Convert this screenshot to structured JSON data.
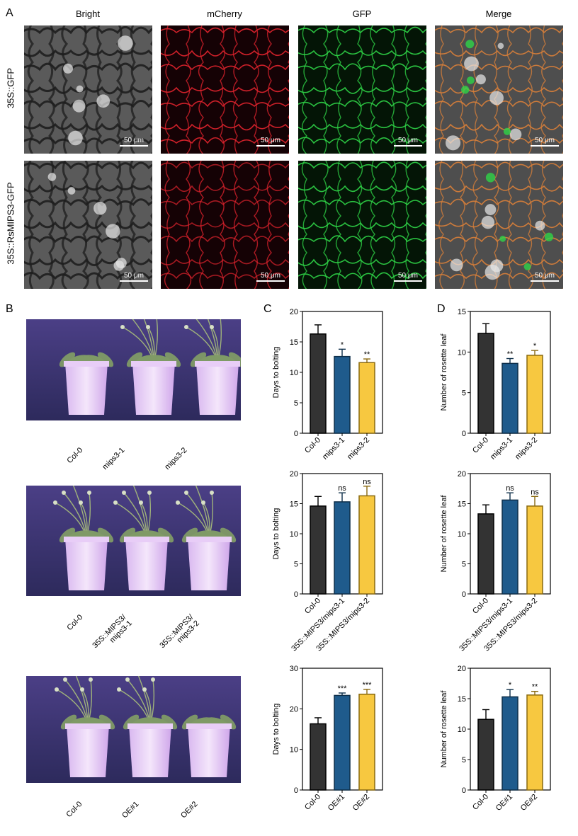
{
  "panelA": {
    "letter": "A",
    "columns": [
      "Bright",
      "mCherry",
      "GFP",
      "Merge"
    ],
    "rows": [
      "35S::GFP",
      "35S::RsMIPS3-GFP"
    ],
    "scale_bar": "50 μm"
  },
  "panelB": {
    "letter": "B",
    "photos": [
      {
        "labels": [
          "Col-0",
          "mips3-1",
          "mips3-2"
        ]
      },
      {
        "labels": [
          "Col-0",
          "35S::MIPS3/\nmips3-1",
          "35S::MIPS3/\nmips3-2"
        ]
      },
      {
        "labels": [
          "Col-0",
          "OE#1",
          "OE#2"
        ]
      }
    ]
  },
  "panelC_letter": "C",
  "panelD_letter": "D",
  "colors": {
    "col0": "#333333",
    "mutant": "#1f5b8c",
    "third": "#f7c840",
    "outline": "#000000"
  },
  "chart_data": [
    {
      "panel": "C",
      "type": "bar",
      "ylabel": "Days to bolting",
      "ylim": [
        0,
        20
      ],
      "yticks": [
        0,
        5,
        10,
        15,
        20
      ],
      "categories": [
        "Col-0",
        "mips3-1",
        "mips3-2"
      ],
      "values": [
        16.3,
        12.6,
        11.6
      ],
      "errors": [
        1.5,
        1.2,
        0.6
      ],
      "significance": [
        "",
        "*",
        "**"
      ]
    },
    {
      "panel": "C",
      "type": "bar",
      "ylabel": "Days to bolting",
      "ylim": [
        0,
        20
      ],
      "yticks": [
        0,
        5,
        10,
        15,
        20
      ],
      "categories": [
        "Col-0",
        "35S::MIPS3/mips3-1",
        "35S::MIPS3/mips3-2"
      ],
      "values": [
        14.6,
        15.3,
        16.3
      ],
      "errors": [
        1.6,
        1.5,
        1.6
      ],
      "significance": [
        "",
        "ns",
        "ns"
      ]
    },
    {
      "panel": "C",
      "type": "bar",
      "ylabel": "Days to bolting",
      "ylim": [
        0,
        30
      ],
      "yticks": [
        0,
        10,
        20,
        30
      ],
      "categories": [
        "Col-0",
        "OE#1",
        "OE#2"
      ],
      "values": [
        16.3,
        23.3,
        23.6
      ],
      "errors": [
        1.5,
        0.6,
        1.2
      ],
      "significance": [
        "",
        "***",
        "***"
      ]
    },
    {
      "panel": "D",
      "type": "bar",
      "ylabel": "Number of rosette leaf",
      "ylim": [
        0,
        15
      ],
      "yticks": [
        0,
        5,
        10,
        15
      ],
      "categories": [
        "Col-0",
        "mips3-1",
        "mips3-2"
      ],
      "values": [
        12.3,
        8.6,
        9.6
      ],
      "errors": [
        1.2,
        0.6,
        0.6
      ],
      "significance": [
        "",
        "**",
        "*"
      ]
    },
    {
      "panel": "D",
      "type": "bar",
      "ylabel": "Number of rosette leaf",
      "ylim": [
        0,
        20
      ],
      "yticks": [
        0,
        5,
        10,
        15,
        20
      ],
      "categories": [
        "Col-0",
        "35S::MIPS3/mips3-1",
        "35S::MIPS3/mips3-2"
      ],
      "values": [
        13.3,
        15.6,
        14.6
      ],
      "errors": [
        1.5,
        1.2,
        1.6
      ],
      "significance": [
        "",
        "ns",
        "ns"
      ]
    },
    {
      "panel": "D",
      "type": "bar",
      "ylabel": "Number of rosette leaf",
      "ylim": [
        0,
        20
      ],
      "yticks": [
        0,
        5,
        10,
        15,
        20
      ],
      "categories": [
        "Col-0",
        "OE#1",
        "OE#2"
      ],
      "values": [
        11.6,
        15.3,
        15.6
      ],
      "errors": [
        1.6,
        1.2,
        0.6
      ],
      "significance": [
        "",
        "*",
        "**"
      ]
    }
  ]
}
